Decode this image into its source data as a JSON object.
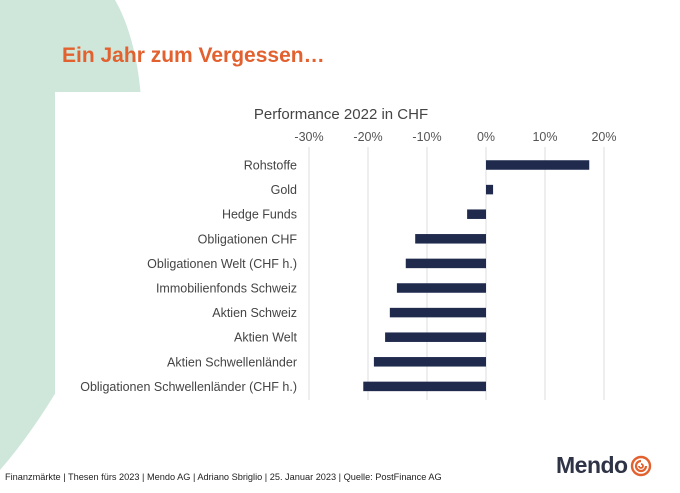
{
  "slide": {
    "title": "Ein Jahr zum Vergessen…",
    "footer": "Finanzmärkte | Thesen fürs 2023 | Mendo AG | Adriano Sbriglio | 25. Januar 2023 | Quelle: PostFinance AG",
    "logo_text": "Mendo",
    "logo_icon": "swirl-icon",
    "colors": {
      "title": "#e2612f",
      "bar": "#1f2a4d",
      "decor": "#cfe7db",
      "logo_icon": "#e2612f"
    }
  },
  "chart_data": {
    "type": "bar",
    "orientation": "horizontal",
    "title": "Performance 2022 in CHF",
    "xlabel": "",
    "ylabel": "",
    "xlim": [
      -30,
      20
    ],
    "xticks": [
      -30,
      -20,
      -10,
      0,
      10,
      20
    ],
    "xtick_labels": [
      "-30%",
      "-20%",
      "-10%",
      "0%",
      "10%",
      "20%"
    ],
    "axis_position": "top",
    "grid": true,
    "categories": [
      "Rohstoffe",
      "Gold",
      "Hedge Funds",
      "Obligationen CHF",
      "Obligationen Welt (CHF h.)",
      "Immobilienfonds Schweiz",
      "Aktien Schweiz",
      "Aktien Welt",
      "Aktien Schwellenländer",
      "Obligationen Schwellenländer (CHF h.)"
    ],
    "values": [
      17.5,
      1.2,
      -3.2,
      -12.0,
      -13.6,
      -15.1,
      -16.3,
      -17.1,
      -19.0,
      -20.8
    ]
  }
}
